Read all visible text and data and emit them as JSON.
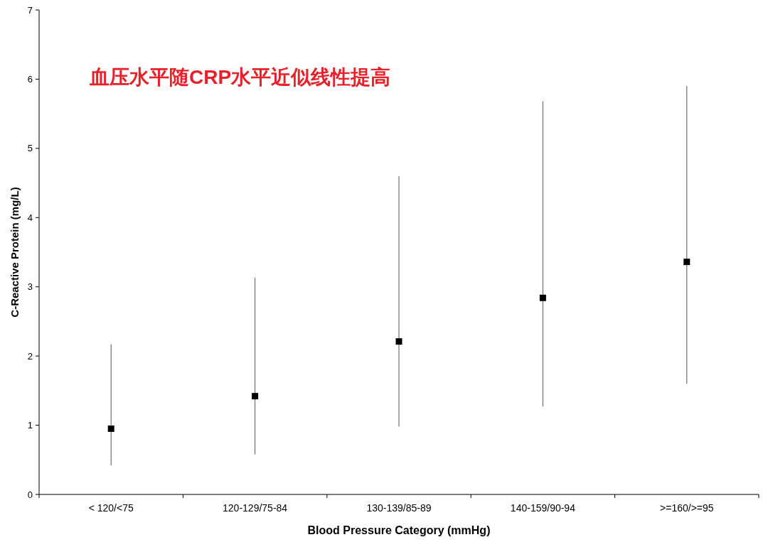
{
  "chart_data": {
    "type": "scatter",
    "xlabel": "Blood Pressure Category (mmHg)",
    "ylabel": "C-Reactive Protein (mg/L)",
    "annotations": [
      "血压水平随CRP水平近似线性提高"
    ],
    "categories": [
      "< 120/<75",
      "120-129/75-84",
      "130-139/85-89",
      "140-159/90-94",
      ">=160/>=95"
    ],
    "values": [
      0.95,
      1.42,
      2.21,
      2.84,
      3.36
    ],
    "errors": [
      [
        0.42,
        2.17
      ],
      [
        0.58,
        3.13
      ],
      [
        0.98,
        4.6
      ],
      [
        1.27,
        5.68
      ],
      [
        1.6,
        5.9
      ]
    ],
    "color": "#000000",
    "marker": "square",
    "ylim": [
      0,
      7
    ],
    "yticks": [
      0,
      1,
      2,
      3,
      4,
      5,
      6,
      7
    ],
    "grid": false
  }
}
